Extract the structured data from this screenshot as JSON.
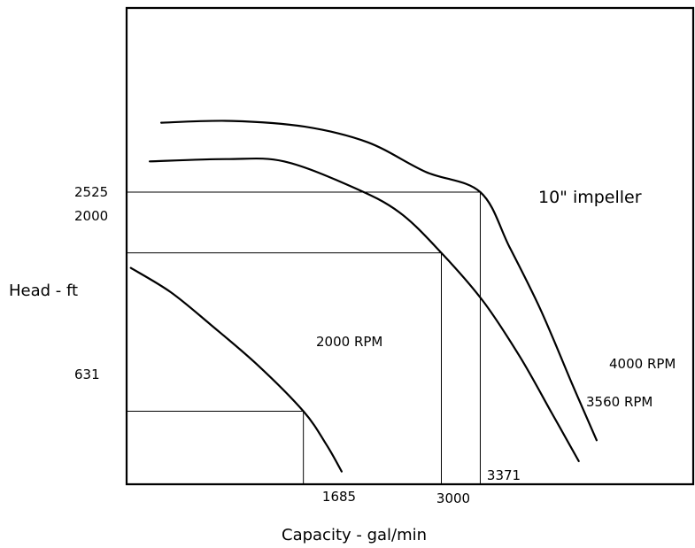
{
  "chart_data": {
    "type": "line",
    "title": "",
    "xlabel": "Capacity - gal/min",
    "ylabel": "Head - ft",
    "annotation": "10\" impeller",
    "grid": false,
    "legend": "none",
    "x_ticks": [
      "1685",
      "3000",
      "3371"
    ],
    "y_ticks": [
      "631",
      "2000",
      "2525"
    ],
    "series": [
      {
        "name": "4000 RPM",
        "points": [
          [
            330,
            3125
          ],
          [
            1000,
            3140
          ],
          [
            1700,
            3090
          ],
          [
            2300,
            2955
          ],
          [
            2850,
            2700
          ],
          [
            3371,
            2525
          ],
          [
            3650,
            2050
          ],
          [
            3950,
            1500
          ],
          [
            4250,
            860
          ],
          [
            4480,
            380
          ]
        ]
      },
      {
        "name": "3560 RPM",
        "points": [
          [
            220,
            2790
          ],
          [
            950,
            2810
          ],
          [
            1500,
            2790
          ],
          [
            2150,
            2570
          ],
          [
            2600,
            2350
          ],
          [
            3000,
            2000
          ],
          [
            3400,
            1580
          ],
          [
            3750,
            1100
          ],
          [
            4050,
            620
          ],
          [
            4310,
            200
          ]
        ]
      },
      {
        "name": "2000 RPM",
        "points": [
          [
            40,
            1870
          ],
          [
            420,
            1660
          ],
          [
            800,
            1380
          ],
          [
            1250,
            1030
          ],
          [
            1685,
            631
          ],
          [
            1900,
            350
          ],
          [
            2050,
            110
          ]
        ]
      }
    ],
    "reference_points": [
      {
        "x": 1685,
        "y": 631
      },
      {
        "x": 3000,
        "y": 2000
      },
      {
        "x": 3371,
        "y": 2525
      }
    ]
  }
}
